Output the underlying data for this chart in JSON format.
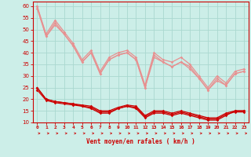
{
  "xlabel": "Vent moyen/en rafales ( km/h )",
  "xlim": [
    -0.5,
    23.5
  ],
  "ylim": [
    10,
    62
  ],
  "yticks": [
    10,
    15,
    20,
    25,
    30,
    35,
    40,
    45,
    50,
    55,
    60
  ],
  "xticks": [
    0,
    1,
    2,
    3,
    4,
    5,
    6,
    7,
    8,
    9,
    10,
    11,
    12,
    13,
    14,
    15,
    16,
    17,
    18,
    19,
    20,
    21,
    22,
    23
  ],
  "bg_color": "#cceee8",
  "grid_color": "#aad8d0",
  "line_color_dark": "#cc0000",
  "line_color_light": "#e89090",
  "x": [
    0,
    1,
    2,
    3,
    4,
    5,
    6,
    7,
    8,
    9,
    10,
    11,
    12,
    13,
    14,
    15,
    16,
    17,
    18,
    19,
    20,
    21,
    22,
    23
  ],
  "series_light": [
    [
      60,
      48,
      54,
      49,
      44,
      37,
      41,
      32,
      38,
      40,
      41,
      38,
      26,
      40,
      37,
      36,
      38,
      35,
      30,
      25,
      30,
      27,
      32,
      33
    ],
    [
      60,
      47,
      53,
      48,
      43,
      36,
      40,
      31,
      37,
      39,
      40,
      37,
      25,
      39,
      36,
      34,
      36,
      34,
      29,
      24,
      29,
      26,
      31,
      32
    ],
    [
      59,
      47,
      52,
      48,
      43,
      36,
      40,
      31,
      37,
      39,
      40,
      37,
      25,
      38,
      36,
      34,
      36,
      33,
      29,
      24,
      28,
      26,
      31,
      32
    ]
  ],
  "series_dark": [
    [
      25,
      20,
      19,
      18.5,
      18,
      17,
      16,
      14,
      14,
      16,
      17,
      16,
      12,
      14,
      14,
      13,
      14,
      13,
      12,
      11,
      11,
      13,
      15,
      15
    ],
    [
      25,
      20,
      19,
      18.5,
      18,
      17.5,
      17,
      15,
      15,
      16.5,
      17.5,
      17,
      13,
      15,
      15,
      14,
      15,
      14,
      13,
      12,
      12,
      14,
      15,
      15
    ],
    [
      24,
      19.5,
      18.5,
      18,
      17.5,
      17,
      16.5,
      14.5,
      14.5,
      16,
      17,
      16.5,
      12.5,
      14.5,
      14.5,
      13.5,
      14.5,
      13.5,
      12.5,
      11.5,
      11.5,
      13.5,
      14.5,
      14.5
    ]
  ]
}
